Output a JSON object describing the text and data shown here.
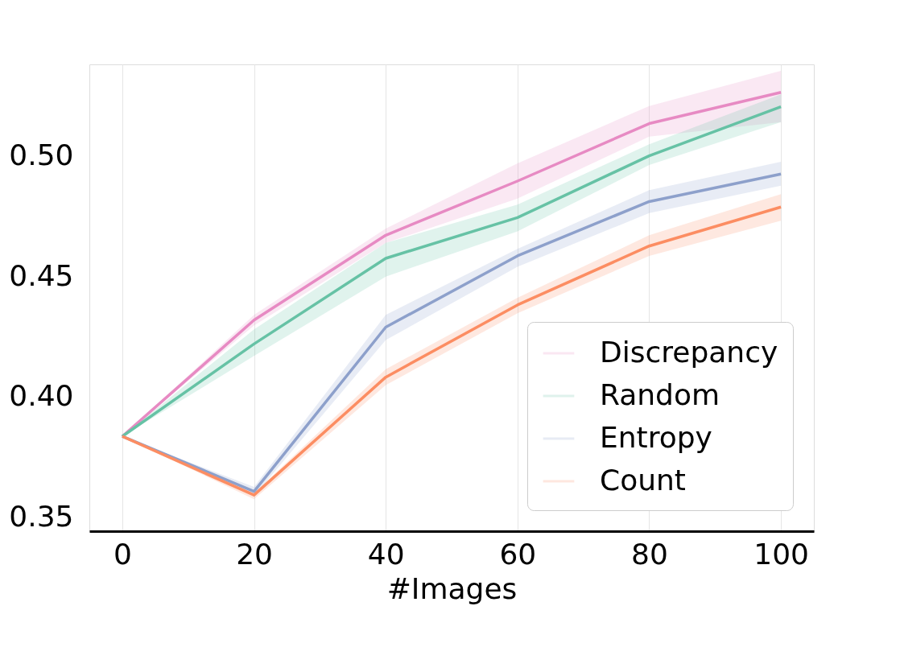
{
  "chart_data": {
    "type": "line",
    "xlabel": "#Images",
    "x": [
      0,
      20,
      40,
      60,
      80,
      100
    ],
    "series": [
      {
        "name": "Discrepancy",
        "color": "#e78ac3",
        "values": [
          0.3834,
          0.4317,
          0.467,
          0.4895,
          0.5134,
          0.5264
        ],
        "lower": [
          0.3834,
          0.4295,
          0.4638,
          0.4822,
          0.508,
          0.514
        ],
        "upper": [
          0.3834,
          0.4339,
          0.4698,
          0.4969,
          0.5207,
          0.5353
        ]
      },
      {
        "name": "Random",
        "color": "#66c2a5",
        "values": [
          0.3834,
          0.4218,
          0.4574,
          0.4743,
          0.5,
          0.5204
        ],
        "lower": [
          0.3834,
          0.4168,
          0.4498,
          0.4686,
          0.4962,
          0.514
        ],
        "upper": [
          0.3834,
          0.4279,
          0.4638,
          0.4797,
          0.5048,
          0.5255
        ]
      },
      {
        "name": "Entropy",
        "color": "#8da0cb",
        "values": [
          0.3834,
          0.3605,
          0.4288,
          0.4584,
          0.481,
          0.4924
        ],
        "lower": [
          0.3834,
          0.3586,
          0.4234,
          0.4539,
          0.4762,
          0.4876
        ],
        "upper": [
          0.3834,
          0.3624,
          0.4339,
          0.4613,
          0.4857,
          0.4975
        ]
      },
      {
        "name": "Count",
        "color": "#fc8d62",
        "values": [
          0.3834,
          0.359,
          0.408,
          0.438,
          0.4625,
          0.4787
        ],
        "lower": [
          0.3834,
          0.3573,
          0.4047,
          0.4346,
          0.4584,
          0.473
        ],
        "upper": [
          0.3834,
          0.3598,
          0.4113,
          0.441,
          0.467,
          0.4841
        ]
      }
    ],
    "xlim": [
      -5,
      105
    ],
    "xticks": [
      0,
      20,
      40,
      60,
      80,
      100
    ],
    "ylim": [
      0.344,
      0.538
    ],
    "yticks": [
      {
        "value": 0.35,
        "label": "0.35"
      },
      {
        "value": 0.4,
        "label": "0.40"
      },
      {
        "value": 0.45,
        "label": "0.45"
      },
      {
        "value": 0.5,
        "label": "0.50"
      }
    ],
    "grid": "x",
    "legend": "bottom right",
    "line_style": "solid"
  }
}
